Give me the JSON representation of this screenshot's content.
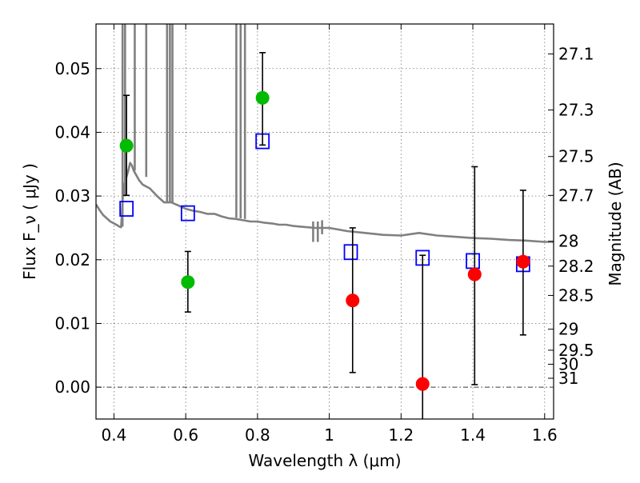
{
  "chart_data": {
    "type": "scatter",
    "xlabel": "Wavelength  λ (μm)",
    "ylabel": "Flux  F_ν  ( μJy )",
    "ylabel_right": "Magnitude (AB)",
    "xlim": [
      0.35,
      1.625
    ],
    "ylim": [
      -0.005,
      0.057
    ],
    "x_ticks": [
      0.4,
      0.6,
      0.8,
      1.0,
      1.2,
      1.4,
      1.6
    ],
    "x_tick_labels": [
      "0.4",
      "0.6",
      "0.8",
      "1",
      "1.2",
      "1.4",
      "1.6"
    ],
    "y_ticks": [
      0.0,
      0.01,
      0.02,
      0.03,
      0.04,
      0.05
    ],
    "y_tick_labels": [
      "0.00",
      "0.01",
      "0.02",
      "0.03",
      "0.04",
      "0.05"
    ],
    "right_ticks": [
      {
        "label": "27.1",
        "flux": 0.0523
      },
      {
        "label": "27.3",
        "flux": 0.0435
      },
      {
        "label": "27.5",
        "flux": 0.0362
      },
      {
        "label": "27.7",
        "flux": 0.0301
      },
      {
        "label": "28",
        "flux": 0.0229
      },
      {
        "label": "28.2",
        "flux": 0.019
      },
      {
        "label": "28.5",
        "flux": 0.0144
      },
      {
        "label": "29",
        "flux": 0.0091
      },
      {
        "label": "29.5",
        "flux": 0.0058
      },
      {
        "label": "30",
        "flux": 0.0036
      },
      {
        "label": "31",
        "flux": 0.0014
      }
    ],
    "grid": true,
    "zero_line": true,
    "model_spectrum": {
      "color": "#808080",
      "x": [
        0.35,
        0.36,
        0.37,
        0.38,
        0.39,
        0.4,
        0.41,
        0.415,
        0.42,
        0.425,
        0.43,
        0.435,
        0.44,
        0.445,
        0.45,
        0.455,
        0.46,
        0.47,
        0.48,
        0.5,
        0.52,
        0.54,
        0.56,
        0.58,
        0.6,
        0.62,
        0.64,
        0.66,
        0.68,
        0.7,
        0.72,
        0.74,
        0.76,
        0.78,
        0.8,
        0.82,
        0.84,
        0.86,
        0.88,
        0.9,
        0.92,
        0.94,
        0.96,
        0.98,
        1.0,
        1.05,
        1.1,
        1.15,
        1.2,
        1.25,
        1.3,
        1.35,
        1.4,
        1.45,
        1.5,
        1.55,
        1.6,
        1.625
      ],
      "y": [
        0.0287,
        0.0278,
        0.027,
        0.0265,
        0.026,
        0.0257,
        0.0254,
        0.0252,
        0.0251,
        0.03,
        0.032,
        0.033,
        0.034,
        0.0352,
        0.0348,
        0.034,
        0.0335,
        0.0325,
        0.0318,
        0.0312,
        0.03,
        0.029,
        0.029,
        0.0285,
        0.028,
        0.0277,
        0.0275,
        0.0272,
        0.0272,
        0.0268,
        0.0265,
        0.0264,
        0.0262,
        0.026,
        0.026,
        0.0258,
        0.0257,
        0.0255,
        0.0255,
        0.0253,
        0.0252,
        0.0251,
        0.025,
        0.025,
        0.025,
        0.0245,
        0.0242,
        0.0239,
        0.0238,
        0.0242,
        0.0238,
        0.0236,
        0.0234,
        0.0233,
        0.0231,
        0.023,
        0.0228,
        0.0228
      ],
      "spikes": [
        {
          "x": 0.424,
          "ymin": 0.0252,
          "ymax": 0.057
        },
        {
          "x": 0.431,
          "ymin": 0.03,
          "ymax": 0.057
        },
        {
          "x": 0.458,
          "ymin": 0.034,
          "ymax": 0.057
        },
        {
          "x": 0.49,
          "ymin": 0.033,
          "ymax": 0.057
        },
        {
          "x": 0.548,
          "ymin": 0.029,
          "ymax": 0.057
        },
        {
          "x": 0.556,
          "ymin": 0.029,
          "ymax": 0.057
        },
        {
          "x": 0.563,
          "ymin": 0.029,
          "ymax": 0.057
        },
        {
          "x": 0.741,
          "ymin": 0.0266,
          "ymax": 0.057
        },
        {
          "x": 0.753,
          "ymin": 0.0265,
          "ymax": 0.057
        },
        {
          "x": 0.765,
          "ymin": 0.0264,
          "ymax": 0.057
        },
        {
          "x": 0.955,
          "ymin": 0.0228,
          "ymax": 0.026
        },
        {
          "x": 0.968,
          "ymin": 0.0228,
          "ymax": 0.026
        },
        {
          "x": 0.98,
          "ymin": 0.024,
          "ymax": 0.0262
        }
      ]
    },
    "series": [
      {
        "marker": "square-open",
        "color": "#0000ff",
        "points": [
          {
            "x": 0.435,
            "y": 0.028
          },
          {
            "x": 0.606,
            "y": 0.0273
          },
          {
            "x": 0.814,
            "y": 0.0386
          },
          {
            "x": 1.06,
            "y": 0.0212
          },
          {
            "x": 1.26,
            "y": 0.0203
          },
          {
            "x": 1.4,
            "y": 0.0198
          },
          {
            "x": 1.54,
            "y": 0.0193
          }
        ]
      },
      {
        "marker": "circle-filled",
        "color": "#00bb00",
        "points": [
          {
            "x": 0.435,
            "y": 0.0379,
            "ylo": 0.0301,
            "yhi": 0.0458
          },
          {
            "x": 0.606,
            "y": 0.0165,
            "ylo": 0.0118,
            "yhi": 0.0213
          },
          {
            "x": 0.814,
            "y": 0.0454,
            "ylo": 0.038,
            "yhi": 0.0525
          }
        ]
      },
      {
        "marker": "circle-filled",
        "color": "#ff0000",
        "points": [
          {
            "x": 1.065,
            "y": 0.0136,
            "ylo": 0.0023,
            "yhi": 0.025
          },
          {
            "x": 1.26,
            "y": 0.0005,
            "ylo": -0.006,
            "yhi": 0.0207
          },
          {
            "x": 1.405,
            "y": 0.0177,
            "ylo": 0.0004,
            "yhi": 0.0346
          },
          {
            "x": 1.54,
            "y": 0.0197,
            "ylo": 0.0082,
            "yhi": 0.0309
          }
        ]
      }
    ]
  }
}
